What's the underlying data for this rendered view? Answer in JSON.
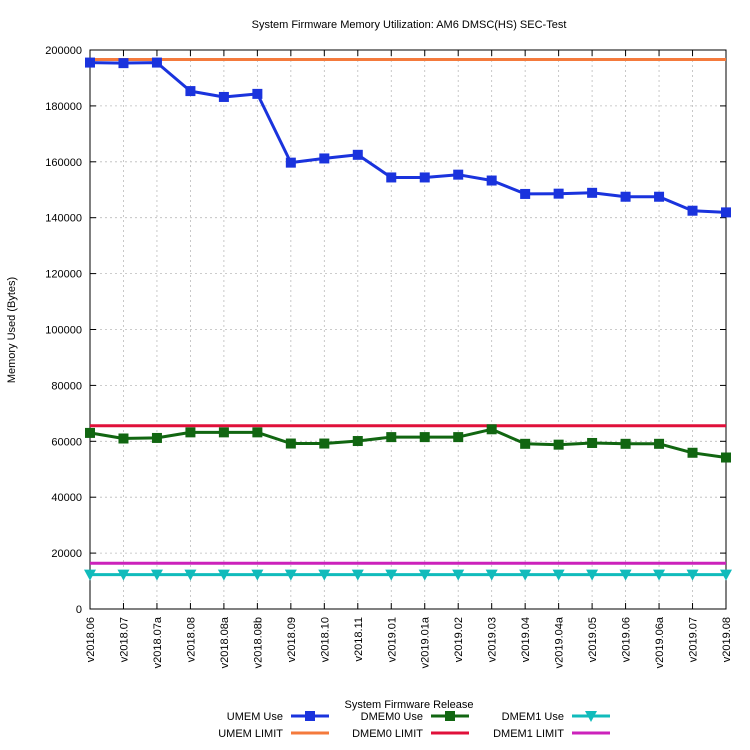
{
  "chart_data": {
    "type": "line",
    "title": "System Firmware Memory Utilization: AM6 DMSC(HS) SEC-Test",
    "xlabel": "System Firmware Release",
    "ylabel": "Memory Used (Bytes)",
    "ylim": [
      0,
      200000
    ],
    "yticks": [
      "0",
      "20000",
      "40000",
      "60000",
      "80000",
      "100000",
      "120000",
      "140000",
      "160000",
      "180000",
      "200000"
    ],
    "grid": true,
    "legend_position": "bottom",
    "categories": [
      "v2018.06",
      "v2018.07",
      "v2018.07a",
      "v2018.08",
      "v2018.08a",
      "v2018.08b",
      "v2018.09",
      "v2018.10",
      "v2018.11",
      "v2019.01",
      "v2019.01a",
      "v2019.02",
      "v2019.03",
      "v2019.04",
      "v2019.04a",
      "v2019.05",
      "v2019.06",
      "v2019.06a",
      "v2019.07",
      "v2019.08"
    ],
    "series": [
      {
        "name": "UMEM Use",
        "color": "#1a33dd",
        "marker": "square",
        "values": [
          195500,
          195300,
          195500,
          185300,
          183200,
          184300,
          159700,
          161200,
          162500,
          154400,
          154400,
          155400,
          153300,
          148500,
          148600,
          148900,
          147500,
          147500,
          142500,
          141900
        ]
      },
      {
        "name": "UMEM LIMIT",
        "color": "#f47a3c",
        "marker": "none",
        "values": [
          196608,
          196608,
          196608,
          196608,
          196608,
          196608,
          196608,
          196608,
          196608,
          196608,
          196608,
          196608,
          196608,
          196608,
          196608,
          196608,
          196608,
          196608,
          196608,
          196608
        ]
      },
      {
        "name": "DMEM0 Use",
        "color": "#116611",
        "marker": "square",
        "values": [
          63000,
          61000,
          61200,
          63200,
          63200,
          63200,
          59200,
          59200,
          60100,
          61500,
          61500,
          61500,
          64300,
          59100,
          58800,
          59400,
          59100,
          59100,
          55900,
          54200
        ]
      },
      {
        "name": "DMEM0 LIMIT",
        "color": "#e0103a",
        "marker": "none",
        "values": [
          65536,
          65536,
          65536,
          65536,
          65536,
          65536,
          65536,
          65536,
          65536,
          65536,
          65536,
          65536,
          65536,
          65536,
          65536,
          65536,
          65536,
          65536,
          65536,
          65536
        ]
      },
      {
        "name": "DMEM1 Use",
        "color": "#11bbbb",
        "marker": "triangle-down",
        "values": [
          12300,
          12300,
          12300,
          12300,
          12300,
          12300,
          12300,
          12300,
          12300,
          12300,
          12300,
          12300,
          12300,
          12300,
          12300,
          12300,
          12300,
          12300,
          12300,
          12300
        ]
      },
      {
        "name": "DMEM1 LIMIT",
        "color": "#cc22bb",
        "marker": "none",
        "values": [
          16384,
          16384,
          16384,
          16384,
          16384,
          16384,
          16384,
          16384,
          16384,
          16384,
          16384,
          16384,
          16384,
          16384,
          16384,
          16384,
          16384,
          16384,
          16384,
          16384
        ]
      }
    ]
  }
}
